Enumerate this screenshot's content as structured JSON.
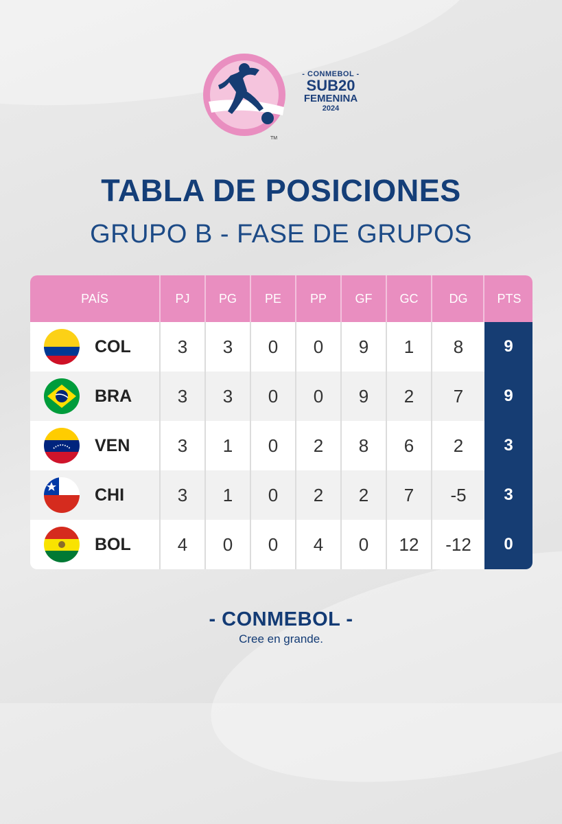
{
  "logo": {
    "line1": "- CONMEBOL -",
    "line2": "SUB20",
    "line3": "FEMENINA",
    "line4": "2024",
    "tm": "TM",
    "pink": "#e98ec0",
    "navy": "#163d73"
  },
  "title": "TABLA DE POSICIONES",
  "subtitle": "GRUPO B -  FASE DE GRUPOS",
  "table": {
    "headers": [
      "PAÍS",
      "PJ",
      "PG",
      "PE",
      "PP",
      "GF",
      "GC",
      "DG",
      "PTS"
    ],
    "rows": [
      {
        "country": "COL",
        "flag": "colombia-flag",
        "pj": "3",
        "pg": "3",
        "pe": "0",
        "pp": "0",
        "gf": "9",
        "gc": "1",
        "dg": "8",
        "pts": "9"
      },
      {
        "country": "BRA",
        "flag": "brazil-flag",
        "pj": "3",
        "pg": "3",
        "pe": "0",
        "pp": "0",
        "gf": "9",
        "gc": "2",
        "dg": "7",
        "pts": "9"
      },
      {
        "country": "VEN",
        "flag": "venezuela-flag",
        "pj": "3",
        "pg": "1",
        "pe": "0",
        "pp": "2",
        "gf": "8",
        "gc": "6",
        "dg": "2",
        "pts": "3"
      },
      {
        "country": "CHI",
        "flag": "chile-flag",
        "pj": "3",
        "pg": "1",
        "pe": "0",
        "pp": "2",
        "gf": "2",
        "gc": "7",
        "dg": "-5",
        "pts": "3"
      },
      {
        "country": "BOL",
        "flag": "bolivia-flag",
        "pj": "4",
        "pg": "0",
        "pe": "0",
        "pp": "4",
        "gf": "0",
        "gc": "12",
        "dg": "-12",
        "pts": "0"
      }
    ]
  },
  "footer": {
    "brand": "- CONMEBOL -",
    "tagline": "Cree en grande."
  }
}
